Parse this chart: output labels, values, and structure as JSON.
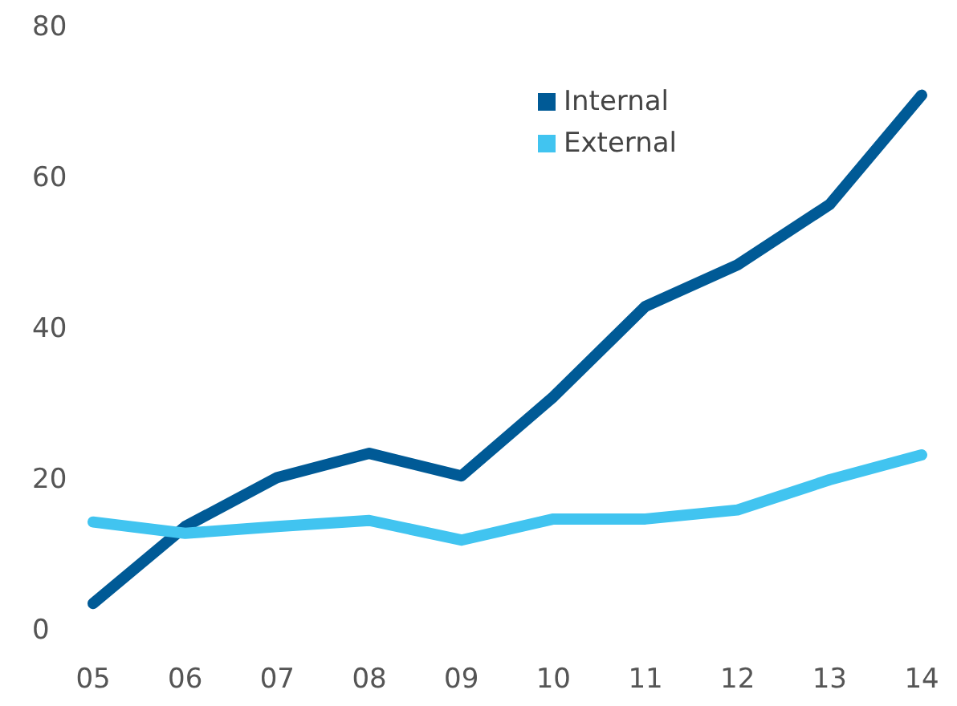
{
  "chart_data": {
    "type": "line",
    "categories": [
      "05",
      "06",
      "07",
      "08",
      "09",
      "10",
      "11",
      "12",
      "13",
      "14"
    ],
    "series": [
      {
        "name": "Internal",
        "color": "#005a96",
        "values": [
          3.6,
          13.8,
          20.3,
          23.5,
          20.5,
          31,
          43,
          48.5,
          56.5,
          71
        ]
      },
      {
        "name": "External",
        "color": "#41c4f0",
        "values": [
          14.4,
          12.9,
          13.8,
          14.6,
          12,
          14.8,
          14.8,
          16,
          20,
          23.3
        ]
      }
    ],
    "ylim": [
      0,
      80
    ],
    "yticks": [
      0,
      20,
      40,
      60,
      80
    ],
    "grid": false,
    "legend": "top",
    "marker": "none",
    "line_style": "solid"
  }
}
